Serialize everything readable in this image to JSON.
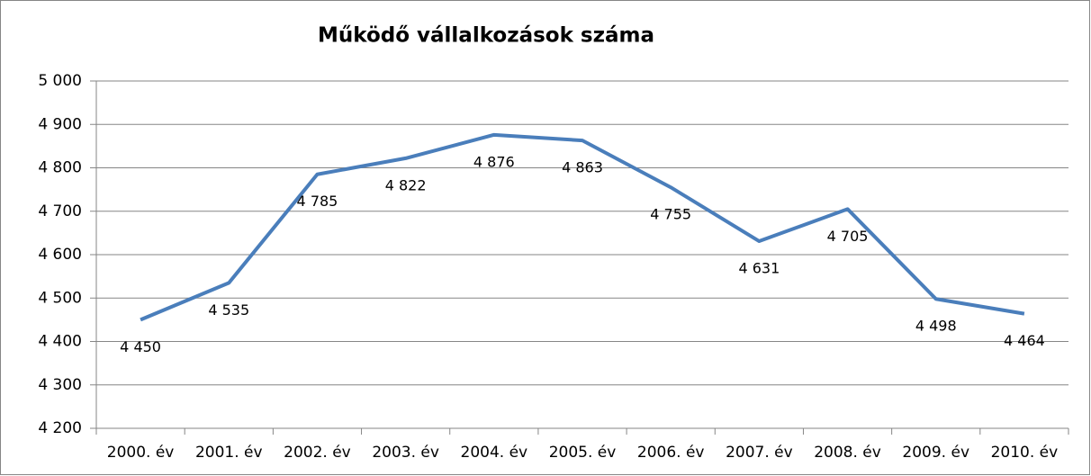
{
  "chart_data": {
    "type": "line",
    "title": "Működő vállalkozások száma",
    "categories": [
      "2000. év",
      "2001. év",
      "2002. év",
      "2003. év",
      "2004. év",
      "2005. év",
      "2006. év",
      "2007. év",
      "2008. év",
      "2009. év",
      "2010. év"
    ],
    "values": [
      4450,
      4535,
      4785,
      4822,
      4876,
      4863,
      4755,
      4631,
      4705,
      4498,
      4464
    ],
    "value_labels": [
      "4 450",
      "4 535",
      "4 785",
      "4 822",
      "4 876",
      "4 863",
      "4 755",
      "4 631",
      "4 705",
      "4 498",
      "4 464"
    ],
    "color": "#4a7ebb",
    "ylim": [
      4200,
      5000
    ],
    "yticks": [
      {
        "value": 4200,
        "label": "4 200"
      },
      {
        "value": 4300,
        "label": "4 300"
      },
      {
        "value": 4400,
        "label": "4 400"
      },
      {
        "value": 4500,
        "label": "4 500"
      },
      {
        "value": 4600,
        "label": "4 600"
      },
      {
        "value": 4700,
        "label": "4 700"
      },
      {
        "value": 4800,
        "label": "4 800"
      },
      {
        "value": 4900,
        "label": "4 900"
      },
      {
        "value": 5000,
        "label": "5 000"
      }
    ],
    "grid": true
  }
}
